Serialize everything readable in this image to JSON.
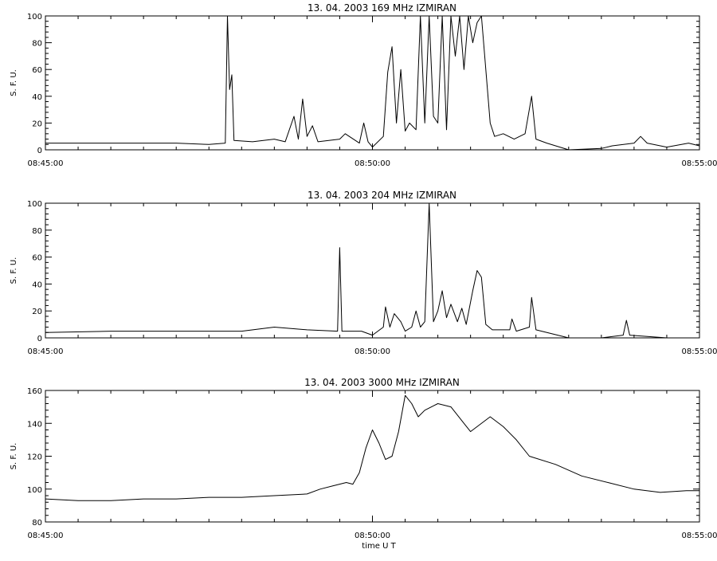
{
  "chart_data": [
    {
      "type": "line",
      "title": "13. 04. 2003   169 MHz    IZMIRAN",
      "ylabel": "S. F. U.",
      "xlabel": "",
      "x_range": [
        "08:45:00",
        "08:55:00"
      ],
      "ylim": [
        0,
        100
      ],
      "yticks": [
        0,
        20,
        40,
        60,
        80,
        100
      ],
      "xtick_labels": [
        "08:45:00",
        "08:50:00",
        "08:55:00"
      ],
      "grid": false,
      "series": [
        {
          "color": "#000000",
          "points": [
            [
              "08:45:00",
              5
            ],
            [
              "08:46:00",
              5
            ],
            [
              "08:47:00",
              5
            ],
            [
              "08:47:30",
              4
            ],
            [
              "08:47:45",
              5
            ],
            [
              "08:47:47",
              100
            ],
            [
              "08:47:49",
              45
            ],
            [
              "08:47:51",
              56
            ],
            [
              "08:47:53",
              7
            ],
            [
              "08:48:10",
              6
            ],
            [
              "08:48:30",
              8
            ],
            [
              "08:48:40",
              6
            ],
            [
              "08:48:48",
              25
            ],
            [
              "08:48:52",
              8
            ],
            [
              "08:48:56",
              38
            ],
            [
              "08:49:00",
              10
            ],
            [
              "08:49:05",
              18
            ],
            [
              "08:49:10",
              6
            ],
            [
              "08:49:30",
              8
            ],
            [
              "08:49:35",
              12
            ],
            [
              "08:49:48",
              5
            ],
            [
              "08:49:52",
              20
            ],
            [
              "08:49:56",
              6
            ],
            [
              "08:50:00",
              2
            ],
            [
              "08:50:10",
              10
            ],
            [
              "08:50:14",
              58
            ],
            [
              "08:50:18",
              77
            ],
            [
              "08:50:22",
              20
            ],
            [
              "08:50:26",
              60
            ],
            [
              "08:50:30",
              14
            ],
            [
              "08:50:34",
              20
            ],
            [
              "08:50:40",
              15
            ],
            [
              "08:50:44",
              100
            ],
            [
              "08:50:48",
              20
            ],
            [
              "08:50:52",
              100
            ],
            [
              "08:50:56",
              25
            ],
            [
              "08:51:00",
              20
            ],
            [
              "08:51:04",
              100
            ],
            [
              "08:51:08",
              15
            ],
            [
              "08:51:12",
              100
            ],
            [
              "08:51:16",
              70
            ],
            [
              "08:51:20",
              100
            ],
            [
              "08:51:24",
              60
            ],
            [
              "08:51:28",
              100
            ],
            [
              "08:51:32",
              80
            ],
            [
              "08:51:36",
              95
            ],
            [
              "08:51:40",
              100
            ],
            [
              "08:51:44",
              60
            ],
            [
              "08:51:48",
              20
            ],
            [
              "08:51:52",
              10
            ],
            [
              "08:52:00",
              12
            ],
            [
              "08:52:10",
              8
            ],
            [
              "08:52:20",
              12
            ],
            [
              "08:52:26",
              40
            ],
            [
              "08:52:30",
              8
            ],
            [
              "08:52:40",
              5
            ],
            [
              "08:53:00",
              0
            ],
            [
              "08:53:30",
              1
            ],
            [
              "08:53:40",
              3
            ],
            [
              "08:54:00",
              5
            ],
            [
              "08:54:06",
              10
            ],
            [
              "08:54:12",
              5
            ],
            [
              "08:54:30",
              2
            ],
            [
              "08:54:50",
              5
            ],
            [
              "08:55:00",
              3
            ]
          ]
        }
      ]
    },
    {
      "type": "line",
      "title": "13. 04. 2003   204 MHz    IZMIRAN",
      "ylabel": "S. F. U.",
      "xlabel": "",
      "x_range": [
        "08:45:00",
        "08:55:00"
      ],
      "ylim": [
        0,
        100
      ],
      "yticks": [
        0,
        20,
        40,
        60,
        80,
        100
      ],
      "xtick_labels": [
        "08:45:00",
        "08:50:00",
        "08:55:00"
      ],
      "grid": false,
      "series": [
        {
          "color": "#000000",
          "points": [
            [
              "08:45:00",
              4
            ],
            [
              "08:46:00",
              5
            ],
            [
              "08:47:00",
              5
            ],
            [
              "08:48:00",
              5
            ],
            [
              "08:48:30",
              8
            ],
            [
              "08:49:00",
              6
            ],
            [
              "08:49:28",
              5
            ],
            [
              "08:49:30",
              67
            ],
            [
              "08:49:32",
              5
            ],
            [
              "08:49:50",
              5
            ],
            [
              "08:50:00",
              2
            ],
            [
              "08:50:10",
              8
            ],
            [
              "08:50:12",
              23
            ],
            [
              "08:50:16",
              8
            ],
            [
              "08:50:20",
              18
            ],
            [
              "08:50:26",
              12
            ],
            [
              "08:50:30",
              5
            ],
            [
              "08:50:36",
              8
            ],
            [
              "08:50:40",
              20
            ],
            [
              "08:50:44",
              8
            ],
            [
              "08:50:48",
              12
            ],
            [
              "08:50:52",
              100
            ],
            [
              "08:50:56",
              12
            ],
            [
              "08:51:00",
              20
            ],
            [
              "08:51:04",
              35
            ],
            [
              "08:51:08",
              15
            ],
            [
              "08:51:12",
              25
            ],
            [
              "08:51:18",
              12
            ],
            [
              "08:51:22",
              22
            ],
            [
              "08:51:26",
              10
            ],
            [
              "08:51:32",
              35
            ],
            [
              "08:51:36",
              50
            ],
            [
              "08:51:40",
              45
            ],
            [
              "08:51:44",
              10
            ],
            [
              "08:51:50",
              6
            ],
            [
              "08:52:06",
              6
            ],
            [
              "08:52:08",
              14
            ],
            [
              "08:52:12",
              5
            ],
            [
              "08:52:24",
              8
            ],
            [
              "08:52:26",
              30
            ],
            [
              "08:52:30",
              6
            ],
            [
              "08:53:00",
              0
            ],
            [
              "08:53:30",
              0
            ],
            [
              "08:53:50",
              2
            ],
            [
              "08:53:53",
              13
            ],
            [
              "08:53:56",
              2
            ],
            [
              "08:54:30",
              0
            ],
            [
              "08:55:00",
              0
            ]
          ]
        }
      ]
    },
    {
      "type": "line",
      "title": "13. 04. 2003   3000 MHz    IZMIRAN",
      "ylabel": "S. F. U.",
      "xlabel": "time  U T",
      "x_range": [
        "08:45:00",
        "08:55:00"
      ],
      "ylim": [
        80,
        160
      ],
      "yticks": [
        80,
        100,
        120,
        140,
        160
      ],
      "xtick_labels": [
        "08:45:00",
        "08:50:00",
        "08:55:00"
      ],
      "grid": false,
      "series": [
        {
          "color": "#000000",
          "points": [
            [
              "08:45:00",
              94
            ],
            [
              "08:45:30",
              93
            ],
            [
              "08:46:00",
              93
            ],
            [
              "08:46:30",
              94
            ],
            [
              "08:47:00",
              94
            ],
            [
              "08:47:30",
              95
            ],
            [
              "08:48:00",
              95
            ],
            [
              "08:48:30",
              96
            ],
            [
              "08:49:00",
              97
            ],
            [
              "08:49:12",
              100
            ],
            [
              "08:49:24",
              102
            ],
            [
              "08:49:36",
              104
            ],
            [
              "08:49:42",
              103
            ],
            [
              "08:49:48",
              110
            ],
            [
              "08:49:54",
              125
            ],
            [
              "08:50:00",
              136
            ],
            [
              "08:50:06",
              128
            ],
            [
              "08:50:12",
              118
            ],
            [
              "08:50:18",
              120
            ],
            [
              "08:50:24",
              135
            ],
            [
              "08:50:30",
              157
            ],
            [
              "08:50:36",
              152
            ],
            [
              "08:50:42",
              144
            ],
            [
              "08:50:48",
              148
            ],
            [
              "08:51:00",
              152
            ],
            [
              "08:51:12",
              150
            ],
            [
              "08:51:24",
              140
            ],
            [
              "08:51:30",
              135
            ],
            [
              "08:51:36",
              138
            ],
            [
              "08:51:48",
              144
            ],
            [
              "08:52:00",
              138
            ],
            [
              "08:52:12",
              130
            ],
            [
              "08:52:24",
              120
            ],
            [
              "08:52:48",
              115
            ],
            [
              "08:53:12",
              108
            ],
            [
              "08:53:36",
              104
            ],
            [
              "08:54:00",
              100
            ],
            [
              "08:54:24",
              98
            ],
            [
              "08:54:48",
              99
            ],
            [
              "08:55:00",
              99
            ]
          ]
        }
      ]
    }
  ]
}
